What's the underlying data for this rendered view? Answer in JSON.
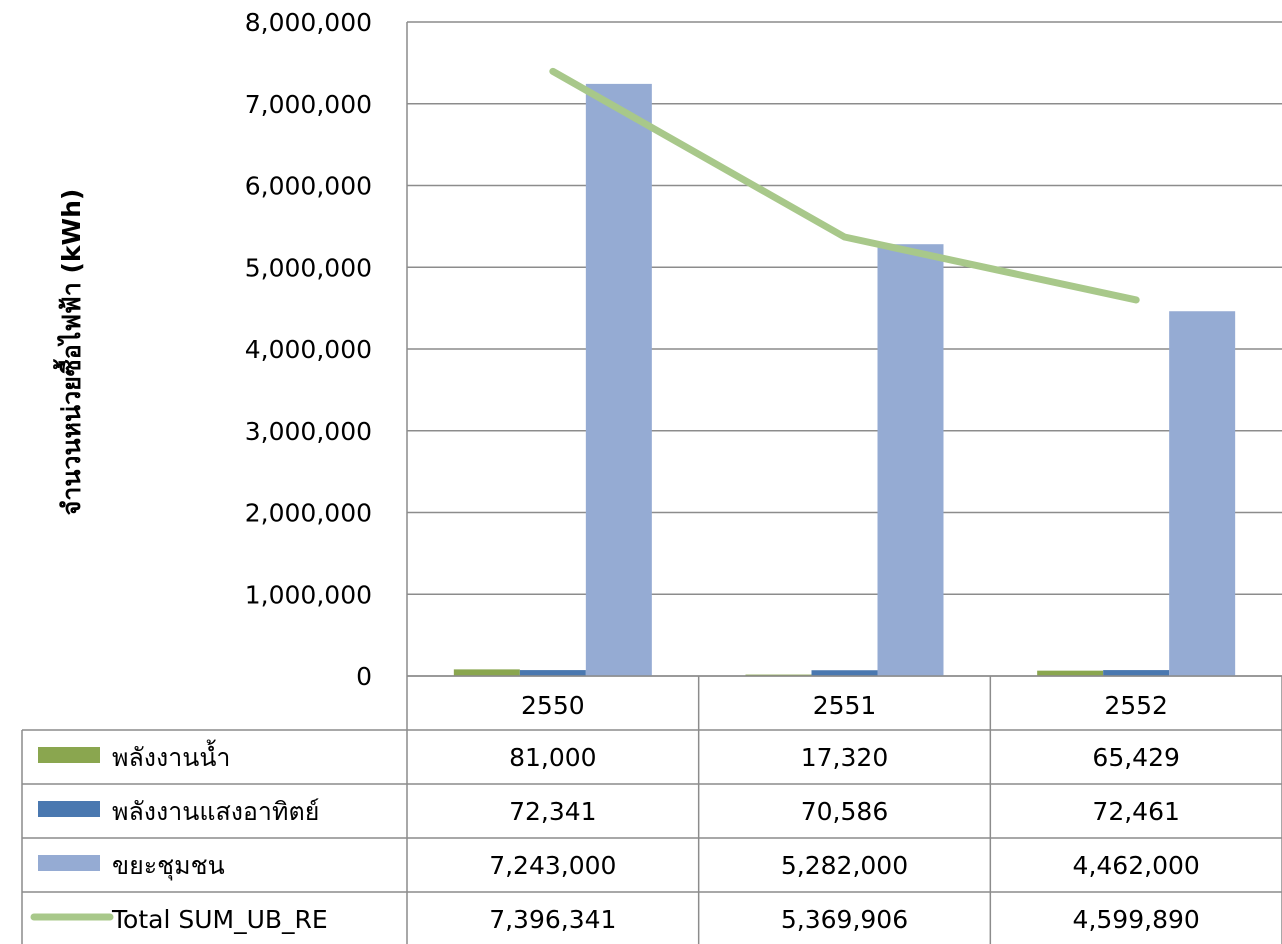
{
  "chart_data": {
    "type": "bar",
    "title": "",
    "xlabel": "",
    "ylabel": "จำนวนหน่วยซื้อไฟฟ้า (kWh)",
    "ylim": [
      0,
      8000000
    ],
    "ytick_step": 1000000,
    "y_ticks": [
      "0",
      "1,000,000",
      "2,000,000",
      "3,000,000",
      "4,000,000",
      "5,000,000",
      "6,000,000",
      "7,000,000",
      "8,000,000"
    ],
    "grid": true,
    "legend": "data-table",
    "categories": [
      "2550",
      "2551",
      "2552"
    ],
    "series": [
      {
        "name": "พลังงานน้ำ",
        "kind": "bar",
        "color": "#8aa64f",
        "values": [
          81000,
          17320,
          65429
        ],
        "labels": [
          "81,000",
          "17,320",
          "65,429"
        ]
      },
      {
        "name": "พลังงานแสงอาทิตย์",
        "kind": "bar",
        "color": "#4a78b0",
        "values": [
          72341,
          70586,
          72461
        ],
        "labels": [
          "72,341",
          "70,586",
          "72,461"
        ]
      },
      {
        "name": "ขยะชุมชน",
        "kind": "bar",
        "color": "#95abd3",
        "values": [
          7243000,
          5282000,
          4462000
        ],
        "labels": [
          "7,243,000",
          "5,282,000",
          "4,462,000"
        ]
      },
      {
        "name": "Total SUM_UB_RE",
        "kind": "line",
        "color": "#a8c88a",
        "values": [
          7396341,
          5369906,
          4599890
        ],
        "labels": [
          "7,396,341",
          "5,369,906",
          "4,599,890"
        ]
      }
    ]
  }
}
